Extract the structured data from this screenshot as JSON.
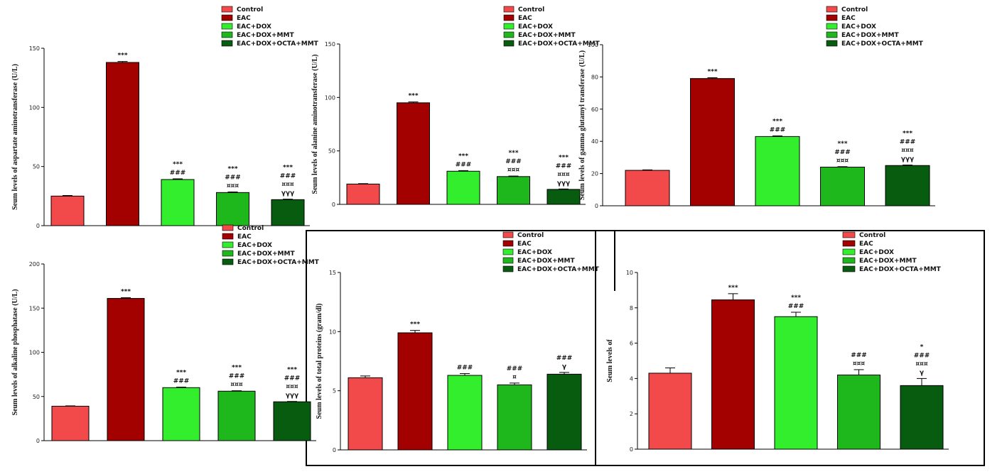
{
  "colors": {
    "Control": "#f2494b",
    "EAC": "#a30000",
    "EAC+DOX": "#33ee2c",
    "EAC+DOX+MMT": "#1eb81c",
    "EAC+DOX+OCTA+MMT": "#085c10"
  },
  "chart_data": [
    {
      "type": "bar",
      "ylabel": "Seum levels of aspartate aminotransferase (U/L)",
      "legend": [
        "Control",
        "EAC",
        "EAC+DOX",
        "EAC+DOX+MMT",
        "EAC+DOX+OCTA+MMT"
      ],
      "categories": [
        "Control",
        "EAC",
        "EAC+DOX",
        "EAC+DOX+MMT",
        "EAC+DOX+OCTA+MMT"
      ],
      "values": [
        25,
        138,
        39,
        28,
        22
      ],
      "errors": [
        0.5,
        0.8,
        0.6,
        0.5,
        0.4
      ],
      "ylim": [
        0,
        150
      ],
      "yticks": [
        "0",
        "50",
        "100",
        "150"
      ],
      "annotations": [
        [],
        [
          "***"
        ],
        [
          "***",
          "###"
        ],
        [
          "***",
          "###",
          "¤¤¤"
        ],
        [
          "***",
          "###",
          "¤¤¤",
          "γγγ"
        ]
      ]
    },
    {
      "type": "bar",
      "ylabel": "Seum levels of alanine aminotransferase (U/L)",
      "legend": [
        "Control",
        "EAC",
        "EAC+DOX",
        "EAC+DOX+MMT",
        "EAC+DOX+OCTA+MMT"
      ],
      "categories": [
        "Control",
        "EAC",
        "EAC+DOX",
        "EAC+DOX+MMT",
        "EAC+DOX+OCTA+MMT"
      ],
      "values": [
        19,
        95,
        31,
        26,
        14
      ],
      "errors": [
        0.4,
        0.8,
        0.6,
        0.5,
        0.4
      ],
      "ylim": [
        0,
        150
      ],
      "yticks": [
        "0",
        "50",
        "100",
        "150"
      ],
      "annotations": [
        [],
        [
          "***"
        ],
        [
          "***",
          "###"
        ],
        [
          "***",
          "###",
          "¤¤¤"
        ],
        [
          "***",
          "###",
          "¤¤¤",
          "γγγ"
        ]
      ]
    },
    {
      "type": "bar",
      "ylabel": "Seum levels of gamma glutamyl transferase (U/L)",
      "legend": [
        "Control",
        "EAC",
        "EAC+DOX",
        "EAC+DOX+MMT",
        "EAC+DOX+OCTA+MMT"
      ],
      "categories": [
        "Control",
        "EAC",
        "EAC+DOX",
        "EAC+DOX+MMT",
        "EAC+DOX+OCTA+MMT"
      ],
      "values": [
        22,
        79,
        43,
        24,
        25
      ],
      "errors": [
        0.3,
        0.5,
        0.4,
        0.3,
        0.3
      ],
      "ylim": [
        0,
        100
      ],
      "yticks": [
        "0",
        "20",
        "40",
        "60",
        "80",
        "100"
      ],
      "annotations": [
        [],
        [
          "***"
        ],
        [
          "***",
          "###"
        ],
        [
          "***",
          "###",
          "¤¤¤"
        ],
        [
          "***",
          "###",
          "¤¤¤",
          "γγγ"
        ]
      ]
    },
    {
      "type": "bar",
      "ylabel": "Seum levels of alkaline phosphatase (U/L)",
      "legend": [
        "Control",
        "EAC",
        "EAC+DOX",
        "EAC+DOX+MMT",
        "EAC+DOX+OCTA+MMT"
      ],
      "categories": [
        "Control",
        "EAC",
        "EAC+DOX",
        "EAC+DOX+MMT",
        "EAC+DOX+OCTA+MMT"
      ],
      "values": [
        39,
        161,
        60,
        56,
        44
      ],
      "errors": [
        0.4,
        0.8,
        0.6,
        0.5,
        0.4
      ],
      "ylim": [
        0,
        200
      ],
      "yticks": [
        "0",
        "50",
        "100",
        "150",
        "200"
      ],
      "annotations": [
        [],
        [
          "***"
        ],
        [
          "***",
          "###"
        ],
        [
          "***",
          "###",
          "¤¤¤"
        ],
        [
          "***",
          "###",
          "¤¤¤",
          "γγγ"
        ]
      ]
    },
    {
      "type": "bar",
      "ylabel": "Seum levels of total proteins (gram/dl)",
      "legend": [
        "Control",
        "EAC",
        "EAC+DOX",
        "EAC+DOX+MMT",
        "EAC+DOX+OCTA+MMT"
      ],
      "categories": [
        "Control",
        "EAC",
        "EAC+DOX",
        "EAC+DOX+MMT",
        "EAC+DOX+OCTA+MMT"
      ],
      "values": [
        6.1,
        9.9,
        6.3,
        5.5,
        6.4
      ],
      "errors": [
        0.15,
        0.2,
        0.15,
        0.15,
        0.15
      ],
      "ylim": [
        0,
        15
      ],
      "yticks": [
        "0",
        "5",
        "10",
        "15"
      ],
      "annotations": [
        [],
        [
          "***"
        ],
        [
          "###"
        ],
        [
          "###",
          "¤"
        ],
        [
          "###",
          "γ"
        ]
      ]
    },
    {
      "type": "bar",
      "ylabel": "Seum levels of",
      "legend": [
        "Control",
        "EAC",
        "EAC+DOX",
        "EAC+DOX+MMT",
        "EAC+DOX+OCTA+MMT"
      ],
      "categories": [
        "Control",
        "EAC",
        "EAC+DOX",
        "EAC+DOX+MMT",
        "EAC+DOX+OCTA+MMT"
      ],
      "values": [
        4.3,
        8.45,
        7.5,
        4.2,
        3.6
      ],
      "errors": [
        0.3,
        0.35,
        0.25,
        0.3,
        0.4
      ],
      "ylim": [
        0,
        10
      ],
      "yticks": [
        "0",
        "2",
        "4",
        "6",
        "8",
        "10"
      ],
      "annotations": [
        [],
        [
          "***"
        ],
        [
          "***",
          "###"
        ],
        [
          "###",
          "¤¤¤"
        ],
        [
          "*",
          "###",
          "¤¤¤",
          "γ"
        ]
      ]
    }
  ]
}
